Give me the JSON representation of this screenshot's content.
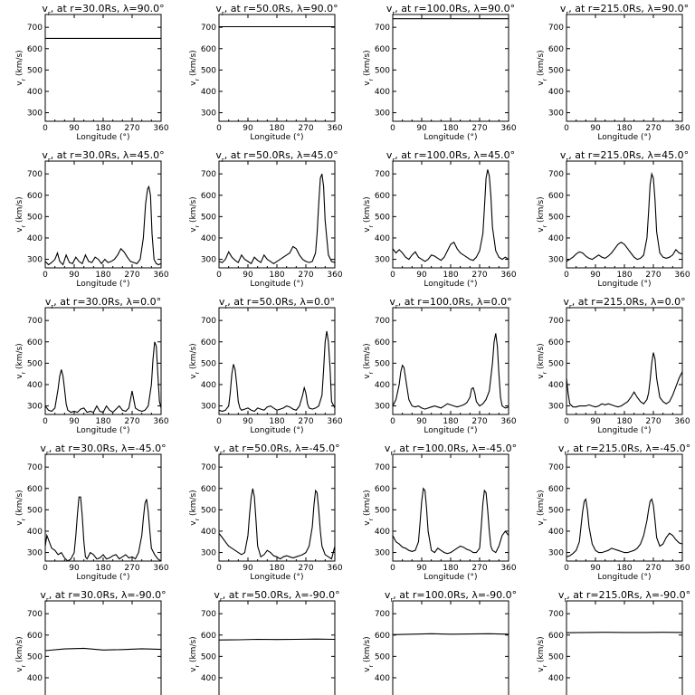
{
  "chart_data": {
    "type": "line",
    "layout": "5 rows x 4 columns of small multiples",
    "grid": false,
    "xlabel": "Longitude (°)",
    "ylabel": "v_r (km/s)",
    "xlim": [
      0,
      360
    ],
    "ylim": [
      260,
      760
    ],
    "xticks": [
      0,
      90,
      180,
      270,
      360
    ],
    "yticks": [
      300,
      400,
      500,
      600,
      700
    ],
    "radii_Rs": [
      "30.0",
      "50.0",
      "100.0",
      "215.0"
    ],
    "latitudes_deg": [
      "90.0",
      "45.0",
      "0.0",
      "-45.0",
      "-90.0"
    ],
    "panels": [
      {
        "title": "v_r at r=30.0Rs, λ=90.0°",
        "x": [
          0,
          360
        ],
        "y": [
          648,
          648
        ]
      },
      {
        "title": "v_r at r=50.0Rs, λ=90.0°",
        "x": [
          0,
          360
        ],
        "y": [
          703,
          703
        ]
      },
      {
        "title": "v_r at r=100.0Rs, λ=90.0°",
        "x": [
          0,
          360
        ],
        "y": [
          740,
          740
        ]
      },
      {
        "title": "v_r at r=215.0Rs, λ=90.0°",
        "x": [
          0,
          360
        ],
        "y": [
          760,
          760
        ]
      },
      {
        "title": "v_r at r=30.0Rs, λ=45.0°",
        "x": [
          0,
          10,
          20,
          30,
          38,
          45,
          55,
          65,
          75,
          85,
          95,
          105,
          115,
          125,
          135,
          145,
          155,
          165,
          175,
          185,
          195,
          205,
          215,
          225,
          235,
          245,
          255,
          265,
          275,
          285,
          295,
          305,
          312,
          318,
          322,
          327,
          332,
          338,
          345,
          352,
          360
        ],
        "y": [
          290,
          275,
          285,
          300,
          330,
          290,
          275,
          320,
          285,
          280,
          310,
          290,
          280,
          320,
          290,
          285,
          310,
          300,
          280,
          300,
          285,
          290,
          300,
          320,
          350,
          335,
          310,
          290,
          285,
          280,
          300,
          400,
          560,
          630,
          640,
          600,
          420,
          300,
          280,
          275,
          280
        ]
      },
      {
        "title": "v_r at r=50.0Rs, λ=45.0°",
        "x": [
          0,
          10,
          20,
          30,
          40,
          50,
          60,
          70,
          80,
          90,
          100,
          110,
          120,
          130,
          140,
          150,
          160,
          170,
          180,
          190,
          200,
          210,
          220,
          230,
          240,
          250,
          260,
          270,
          280,
          290,
          300,
          305,
          310,
          315,
          320,
          325,
          330,
          340,
          350,
          360
        ],
        "y": [
          290,
          285,
          300,
          335,
          310,
          295,
          285,
          320,
          300,
          290,
          280,
          310,
          295,
          285,
          320,
          300,
          290,
          280,
          290,
          300,
          310,
          320,
          330,
          360,
          350,
          320,
          300,
          290,
          285,
          290,
          330,
          420,
          560,
          680,
          700,
          640,
          480,
          320,
          290,
          285
        ]
      },
      {
        "title": "v_r at r=100.0Rs, λ=45.0°",
        "x": [
          0,
          10,
          20,
          30,
          40,
          50,
          60,
          70,
          80,
          90,
          100,
          110,
          120,
          130,
          140,
          150,
          160,
          170,
          180,
          190,
          200,
          210,
          220,
          230,
          240,
          250,
          260,
          270,
          280,
          285,
          290,
          295,
          300,
          305,
          310,
          320,
          330,
          340,
          350,
          360
        ],
        "y": [
          350,
          330,
          345,
          330,
          310,
          300,
          320,
          335,
          310,
          300,
          290,
          300,
          320,
          315,
          305,
          295,
          310,
          340,
          370,
          380,
          350,
          330,
          320,
          310,
          300,
          295,
          310,
          340,
          420,
          540,
          680,
          720,
          690,
          600,
          450,
          340,
          310,
          300,
          310,
          300
        ]
      },
      {
        "title": "v_r at r=215.0Rs, λ=45.0°",
        "x": [
          0,
          10,
          20,
          30,
          40,
          50,
          60,
          70,
          80,
          90,
          100,
          110,
          120,
          130,
          140,
          150,
          160,
          170,
          180,
          190,
          200,
          210,
          220,
          230,
          240,
          250,
          255,
          260,
          265,
          270,
          275,
          280,
          290,
          300,
          310,
          320,
          330,
          340,
          350,
          360
        ],
        "y": [
          290,
          300,
          310,
          325,
          335,
          330,
          315,
          305,
          300,
          310,
          320,
          310,
          305,
          315,
          330,
          350,
          370,
          380,
          370,
          350,
          330,
          310,
          300,
          305,
          320,
          400,
          520,
          650,
          700,
          680,
          580,
          430,
          330,
          310,
          305,
          310,
          320,
          345,
          330,
          325
        ]
      },
      {
        "title": "v_r at r=30.0Rs, λ=0.0°",
        "x": [
          0,
          10,
          20,
          30,
          40,
          45,
          50,
          55,
          60,
          65,
          70,
          80,
          90,
          100,
          110,
          120,
          130,
          140,
          150,
          160,
          170,
          180,
          190,
          200,
          210,
          220,
          230,
          240,
          250,
          260,
          265,
          270,
          275,
          280,
          290,
          300,
          310,
          320,
          330,
          335,
          340,
          345,
          350,
          355,
          360
        ],
        "y": [
          300,
          280,
          275,
          290,
          380,
          440,
          470,
          440,
          380,
          310,
          280,
          270,
          275,
          270,
          285,
          290,
          270,
          275,
          270,
          300,
          275,
          270,
          300,
          280,
          270,
          285,
          300,
          280,
          275,
          290,
          330,
          370,
          330,
          290,
          280,
          275,
          280,
          300,
          400,
          520,
          600,
          580,
          450,
          320,
          290
        ]
      },
      {
        "title": "v_r at r=50.0Rs, λ=0.0°",
        "x": [
          0,
          10,
          20,
          30,
          35,
          40,
          45,
          50,
          55,
          60,
          65,
          70,
          80,
          90,
          100,
          110,
          120,
          130,
          140,
          150,
          160,
          170,
          180,
          190,
          200,
          210,
          220,
          230,
          240,
          250,
          260,
          265,
          270,
          275,
          280,
          290,
          300,
          310,
          320,
          325,
          330,
          335,
          340,
          345,
          350,
          360
        ],
        "y": [
          280,
          275,
          280,
          300,
          360,
          450,
          495,
          470,
          400,
          320,
          290,
          280,
          285,
          290,
          280,
          275,
          290,
          285,
          280,
          295,
          300,
          290,
          280,
          285,
          290,
          300,
          295,
          285,
          280,
          300,
          350,
          385,
          360,
          310,
          290,
          285,
          290,
          300,
          350,
          470,
          600,
          650,
          600,
          480,
          320,
          290
        ]
      },
      {
        "title": "v_r at r=100.0Rs, λ=0.0°",
        "x": [
          0,
          10,
          20,
          25,
          30,
          35,
          40,
          50,
          60,
          70,
          80,
          90,
          100,
          110,
          120,
          130,
          140,
          150,
          160,
          170,
          180,
          190,
          200,
          210,
          220,
          230,
          240,
          245,
          250,
          255,
          260,
          270,
          280,
          290,
          300,
          310,
          315,
          320,
          325,
          330,
          335,
          340,
          350,
          360
        ],
        "y": [
          300,
          330,
          400,
          460,
          490,
          480,
          430,
          330,
          300,
          295,
          300,
          290,
          285,
          290,
          295,
          300,
          295,
          290,
          300,
          310,
          305,
          300,
          295,
          300,
          305,
          315,
          340,
          380,
          385,
          360,
          320,
          300,
          310,
          330,
          370,
          500,
          600,
          640,
          580,
          450,
          340,
          300,
          290,
          295
        ]
      },
      {
        "title": "v_r at r=215.0Rs, λ=0.0°",
        "x": [
          0,
          5,
          10,
          20,
          30,
          40,
          50,
          60,
          70,
          80,
          90,
          100,
          110,
          120,
          130,
          140,
          150,
          160,
          170,
          180,
          190,
          200,
          210,
          220,
          230,
          240,
          250,
          255,
          260,
          265,
          270,
          275,
          280,
          290,
          300,
          310,
          320,
          330,
          340,
          350,
          360
        ],
        "y": [
          430,
          360,
          310,
          295,
          295,
          300,
          300,
          300,
          305,
          300,
          295,
          300,
          310,
          305,
          310,
          305,
          300,
          295,
          300,
          310,
          320,
          340,
          365,
          340,
          320,
          310,
          330,
          360,
          420,
          500,
          550,
          520,
          430,
          340,
          320,
          310,
          320,
          350,
          390,
          430,
          460
        ]
      },
      {
        "title": "v_r at r=30.0Rs, λ=-45.0°",
        "x": [
          0,
          5,
          10,
          20,
          30,
          40,
          50,
          60,
          70,
          80,
          90,
          95,
          100,
          105,
          110,
          115,
          120,
          125,
          130,
          140,
          150,
          160,
          170,
          180,
          190,
          200,
          210,
          220,
          230,
          240,
          250,
          260,
          270,
          280,
          290,
          300,
          305,
          310,
          315,
          320,
          325,
          330,
          340,
          350,
          360
        ],
        "y": [
          330,
          380,
          360,
          320,
          310,
          290,
          300,
          275,
          260,
          270,
          300,
          380,
          480,
          560,
          560,
          470,
          350,
          280,
          270,
          300,
          290,
          270,
          275,
          290,
          270,
          275,
          285,
          290,
          270,
          280,
          290,
          275,
          280,
          270,
          300,
          380,
          460,
          530,
          550,
          490,
          400,
          320,
          290,
          270,
          260
        ]
      },
      {
        "title": "v_r at r=50.0Rs, λ=-45.0°",
        "x": [
          0,
          10,
          20,
          30,
          40,
          50,
          60,
          70,
          80,
          90,
          95,
          100,
          105,
          110,
          115,
          120,
          130,
          140,
          150,
          160,
          170,
          180,
          190,
          200,
          210,
          220,
          230,
          240,
          250,
          260,
          270,
          280,
          290,
          295,
          300,
          305,
          310,
          315,
          320,
          330,
          340,
          350,
          360
        ],
        "y": [
          390,
          370,
          350,
          330,
          320,
          310,
          300,
          290,
          300,
          380,
          480,
          560,
          600,
          560,
          450,
          330,
          280,
          290,
          310,
          300,
          285,
          280,
          270,
          280,
          285,
          280,
          275,
          280,
          285,
          290,
          300,
          330,
          420,
          520,
          590,
          580,
          500,
          400,
          330,
          290,
          280,
          270,
          330
        ]
      },
      {
        "title": "v_r at r=100.0Rs, λ=-45.0°",
        "x": [
          0,
          10,
          20,
          30,
          40,
          50,
          60,
          70,
          80,
          85,
          90,
          95,
          100,
          105,
          110,
          120,
          130,
          140,
          150,
          160,
          170,
          180,
          190,
          200,
          210,
          220,
          230,
          240,
          250,
          260,
          270,
          275,
          280,
          285,
          290,
          295,
          300,
          305,
          310,
          320,
          330,
          340,
          350,
          360
        ],
        "y": [
          380,
          350,
          340,
          325,
          320,
          310,
          305,
          310,
          350,
          440,
          540,
          600,
          590,
          510,
          400,
          310,
          300,
          320,
          310,
          300,
          295,
          300,
          310,
          320,
          330,
          325,
          315,
          310,
          300,
          300,
          320,
          420,
          530,
          590,
          580,
          500,
          400,
          330,
          310,
          300,
          330,
          380,
          400,
          380
        ]
      },
      {
        "title": "v_r at r=215.0Rs, λ=-45.0°",
        "x": [
          0,
          10,
          20,
          30,
          40,
          45,
          50,
          55,
          60,
          65,
          70,
          80,
          90,
          100,
          110,
          120,
          130,
          140,
          150,
          160,
          170,
          180,
          190,
          200,
          210,
          220,
          230,
          240,
          250,
          255,
          260,
          265,
          270,
          275,
          280,
          290,
          300,
          310,
          320,
          330,
          340,
          350,
          360
        ],
        "y": [
          280,
          285,
          295,
          310,
          350,
          420,
          490,
          540,
          550,
          500,
          420,
          340,
          310,
          300,
          300,
          305,
          310,
          320,
          315,
          310,
          305,
          300,
          300,
          305,
          310,
          320,
          340,
          380,
          450,
          500,
          540,
          550,
          520,
          450,
          370,
          330,
          340,
          370,
          390,
          380,
          360,
          345,
          340
        ]
      },
      {
        "title": "v_r at r=30.0Rs, λ=-90.0°",
        "x": [
          0,
          60,
          120,
          180,
          240,
          300,
          360
        ],
        "y": [
          527,
          535,
          538,
          530,
          532,
          536,
          533
        ]
      },
      {
        "title": "v_r at r=50.0Rs, λ=-90.0°",
        "x": [
          0,
          60,
          120,
          180,
          240,
          300,
          360
        ],
        "y": [
          577,
          578,
          580,
          579,
          580,
          581,
          580
        ]
      },
      {
        "title": "v_r at r=100.0Rs, λ=-90.0°",
        "x": [
          0,
          60,
          120,
          180,
          240,
          300,
          360
        ],
        "y": [
          602,
          604,
          606,
          604,
          605,
          606,
          604
        ]
      },
      {
        "title": "v_r at r=215.0Rs, λ=-90.0°",
        "x": [
          0,
          60,
          120,
          180,
          240,
          300,
          360
        ],
        "y": [
          611,
          612,
          613,
          612,
          612,
          613,
          612
        ]
      }
    ]
  }
}
